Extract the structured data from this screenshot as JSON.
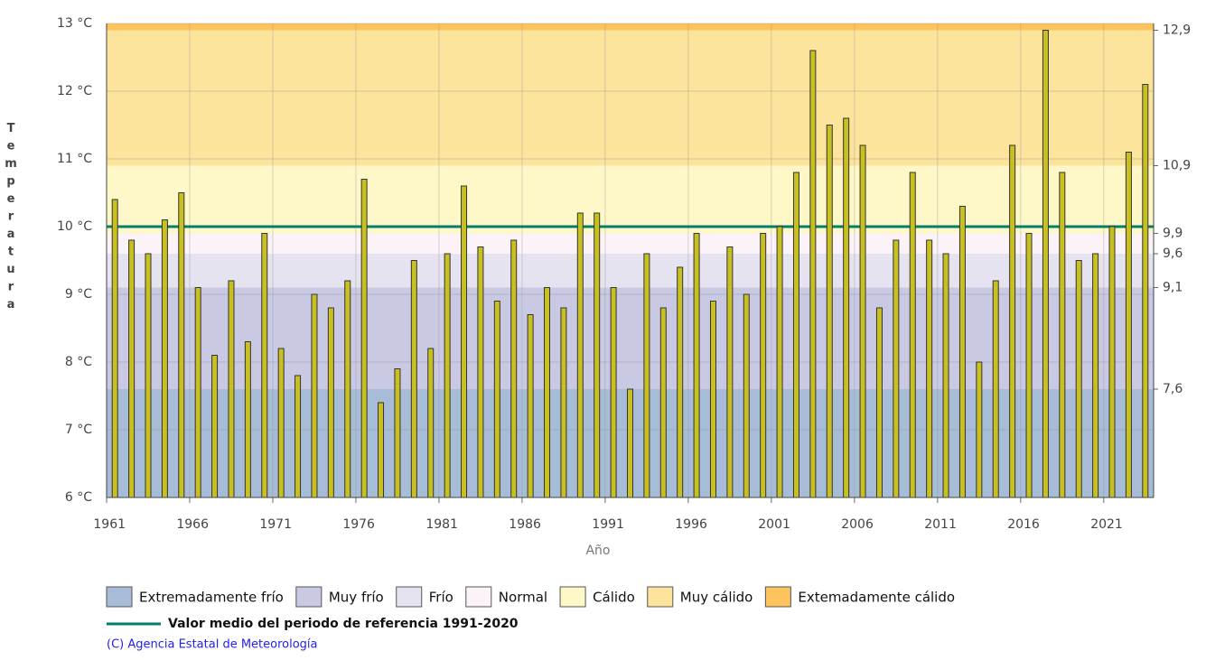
{
  "chart_data": {
    "type": "bar",
    "y_label": "Temperatura",
    "x_label": "Año",
    "categories": [
      "1961",
      null,
      null,
      null,
      null,
      "1966",
      null,
      null,
      null,
      null,
      "1971",
      null,
      null,
      null,
      null,
      "1976",
      null,
      null,
      null,
      null,
      "1981",
      null,
      null,
      null,
      null,
      "1986",
      null,
      null,
      null,
      null,
      "1991",
      null,
      null,
      null,
      null,
      "1996",
      null,
      null,
      null,
      null,
      "2001",
      null,
      null,
      null,
      null,
      "2006",
      null,
      null,
      null,
      null,
      "2011",
      null,
      null,
      null,
      null,
      "2016",
      null,
      null,
      null,
      null,
      "2021",
      null,
      null
    ],
    "values": [
      10.4,
      9.8,
      9.6,
      10.1,
      10.5,
      9.1,
      8.1,
      9.2,
      8.3,
      9.9,
      8.2,
      7.8,
      9.0,
      8.8,
      9.2,
      10.7,
      7.4,
      7.9,
      9.5,
      8.2,
      9.6,
      10.6,
      9.7,
      8.9,
      9.8,
      8.7,
      9.1,
      8.8,
      10.2,
      10.2,
      9.1,
      7.6,
      9.6,
      8.8,
      9.4,
      9.9,
      8.9,
      9.7,
      9.0,
      9.9,
      10.0,
      10.8,
      12.6,
      11.5,
      11.6,
      11.2,
      8.8,
      9.8,
      10.8,
      9.8,
      9.6,
      10.3,
      8.0,
      9.2,
      11.2,
      9.9,
      12.9,
      10.8,
      9.5,
      9.6,
      10.0,
      11.1,
      12.1
    ],
    "color": "#c8c020",
    "ylim": [
      6,
      13
    ],
    "yticks": [
      {
        "value": 6,
        "label": "6 °C"
      },
      {
        "value": 7,
        "label": "7 °C"
      },
      {
        "value": 8,
        "label": "8 °C"
      },
      {
        "value": 9,
        "label": "9 °C"
      },
      {
        "value": 10,
        "label": "10 °C"
      },
      {
        "value": 11,
        "label": "11 °C"
      },
      {
        "value": 12,
        "label": "12 °C"
      },
      {
        "value": 13,
        "label": "13 °C"
      }
    ],
    "y2lim": [
      6,
      13
    ],
    "y2ticks": [
      {
        "value": 7.6,
        "label": "7,6"
      },
      {
        "value": 9.1,
        "label": "9,1"
      },
      {
        "value": 9.6,
        "label": "9,6"
      },
      {
        "value": 9.9,
        "label": "9,9"
      },
      {
        "value": 10.9,
        "label": "10,9"
      },
      {
        "value": 12.9,
        "label": "12,9"
      }
    ],
    "grid": true,
    "bands": [
      {
        "name": "Extremadamente frío",
        "color": "#a7bcd6"
      },
      {
        "name": "Muy frío",
        "color": "#c9c9e4"
      },
      {
        "name": "Frío",
        "color": "#e6e3f1"
      },
      {
        "name": "Normal",
        "color": "#fbf3f8"
      },
      {
        "name": "Cálido",
        "color": "#fef8c8"
      },
      {
        "name": "Muy cálido",
        "color": "#fde49c"
      },
      {
        "name": "Extemadamente cálido",
        "color": "#fdc35c"
      }
    ],
    "reference": {
      "name": "Valor medio del periodo de referencia 1991-2020",
      "value": 10.0,
      "color": "#00806a"
    },
    "source": "(C) Agencia Estatal de Meteorología"
  }
}
